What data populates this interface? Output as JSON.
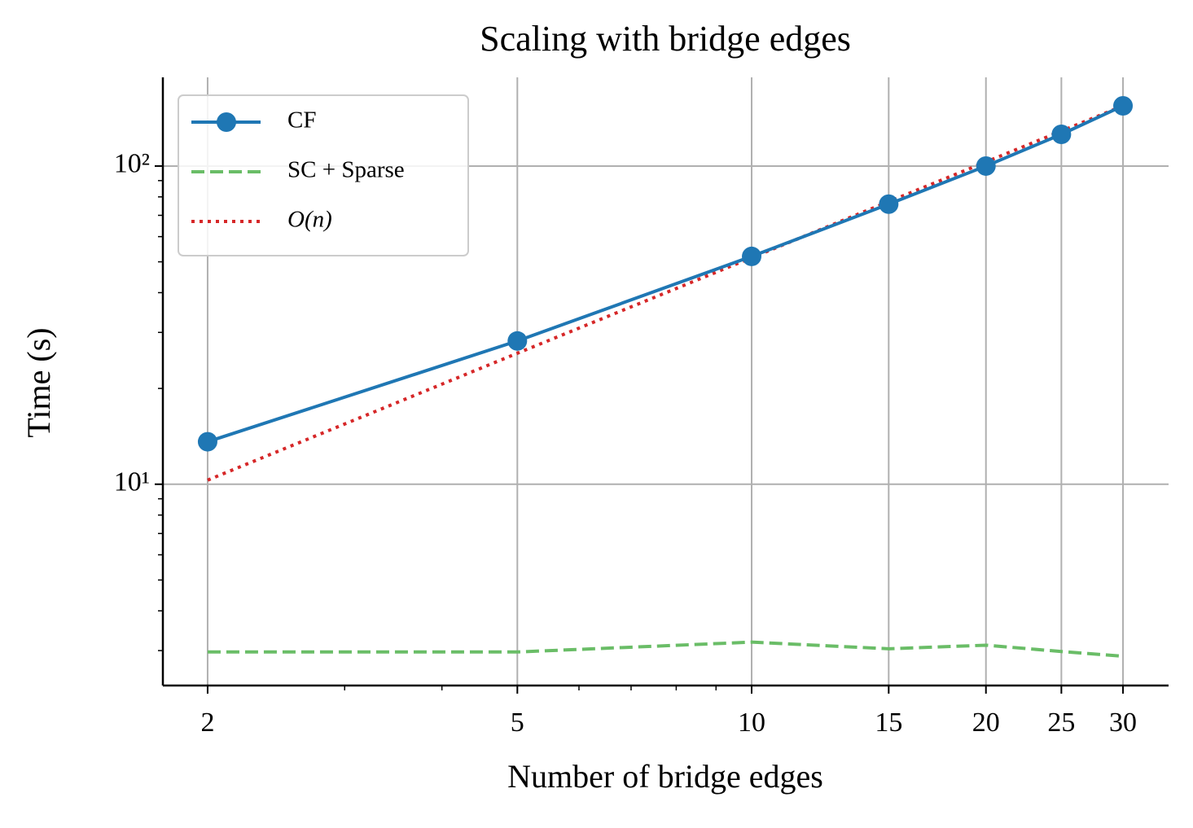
{
  "chart_data": {
    "type": "line",
    "title": "Scaling with bridge edges",
    "x_label": "Number of bridge edges",
    "y_label": "Time (s)",
    "x": [
      2,
      5,
      10,
      15,
      20,
      25,
      30
    ],
    "series": [
      {
        "name": "CF",
        "color": "#1f77b4",
        "style": "solid",
        "marker": true,
        "values": [
          13.6,
          28.2,
          52,
          75.9,
          100,
          125.8,
          154.6
        ]
      },
      {
        "name": "SC + Sparse",
        "color": "#6abd67",
        "style": "dashed",
        "marker": false,
        "values": [
          2.97,
          2.97,
          3.19,
          3.04,
          3.12,
          2.98,
          2.88
        ]
      },
      {
        "name": "O(n)",
        "color": "#d62728",
        "style": "dotted",
        "marker": false,
        "values": [
          10.3,
          25.8,
          51.5,
          77.3,
          103,
          128.8,
          154.6
        ]
      }
    ],
    "x_log": true,
    "y_log": true,
    "xlim": [
      1.752,
      34.33
    ],
    "ylim": [
      2.33,
      190
    ],
    "xticks": [
      2,
      5,
      10,
      15,
      20,
      25,
      30
    ],
    "yticks": [
      {
        "value": 10,
        "label": "10¹"
      },
      {
        "value": 100,
        "label": "10²"
      }
    ],
    "grid": true,
    "legend": "upper left"
  }
}
